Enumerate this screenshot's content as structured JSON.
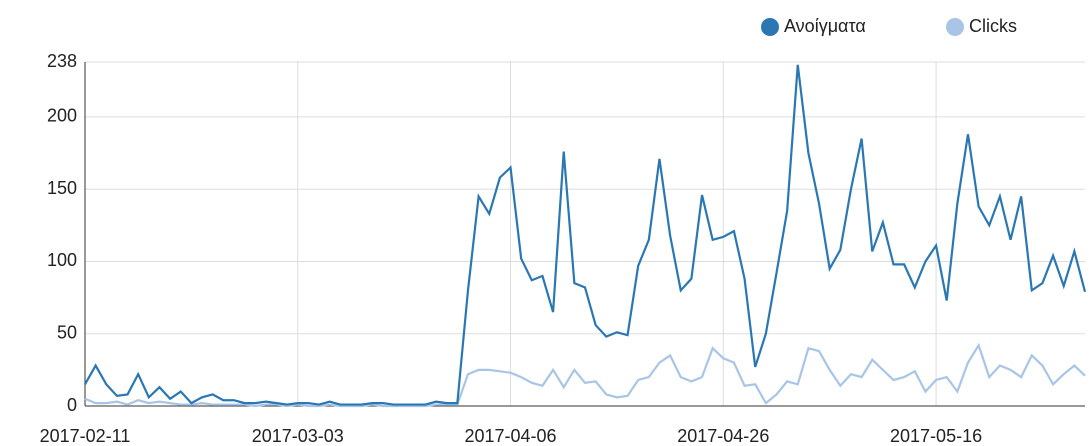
{
  "chart_data": {
    "type": "line",
    "categories": [
      "2017-02-11",
      null,
      null,
      null,
      null,
      null,
      null,
      null,
      null,
      null,
      null,
      null,
      null,
      null,
      null,
      null,
      null,
      null,
      null,
      null,
      "2017-03-03",
      null,
      null,
      null,
      null,
      null,
      null,
      null,
      null,
      null,
      null,
      null,
      null,
      null,
      null,
      null,
      null,
      null,
      null,
      null,
      "2017-04-06",
      null,
      null,
      null,
      null,
      null,
      null,
      null,
      null,
      null,
      null,
      null,
      null,
      null,
      null,
      null,
      null,
      null,
      null,
      null,
      "2017-04-26",
      null,
      null,
      null,
      null,
      null,
      null,
      null,
      null,
      null,
      null,
      null,
      null,
      null,
      null,
      null,
      null,
      null,
      null,
      null,
      "2017-05-16",
      null,
      null,
      null,
      null,
      null,
      null,
      null,
      null,
      null,
      null,
      null,
      null,
      null,
      null
    ],
    "series": [
      {
        "name": "Ανοίγματα",
        "color": "#2a77b4",
        "values": [
          15,
          28,
          15,
          7,
          8,
          22,
          6,
          13,
          5,
          10,
          2,
          6,
          8,
          4,
          4,
          2,
          2,
          3,
          2,
          1,
          2,
          2,
          1,
          3,
          1,
          1,
          1,
          2,
          2,
          1,
          1,
          1,
          1,
          3,
          2,
          2,
          80,
          145,
          133,
          158,
          165,
          102,
          87,
          90,
          65,
          176,
          85,
          82,
          56,
          48,
          51,
          49,
          97,
          115,
          171,
          118,
          80,
          88,
          146,
          115,
          117,
          121,
          88,
          27,
          50,
          92,
          135,
          236,
          175,
          140,
          95,
          108,
          150,
          185,
          107,
          127,
          98,
          98,
          82,
          100,
          111,
          73,
          140,
          188,
          138,
          125,
          145,
          115,
          145,
          80,
          85,
          104,
          83,
          107,
          79
        ]
      },
      {
        "name": "Clicks",
        "color": "#a9c5e6",
        "values": [
          5,
          2,
          2,
          3,
          1,
          4,
          2,
          3,
          2,
          1,
          1,
          2,
          1,
          1,
          1,
          1,
          0,
          1,
          1,
          0,
          1,
          0,
          0,
          1,
          0,
          0,
          0,
          1,
          0,
          0,
          0,
          0,
          0,
          1,
          1,
          1,
          22,
          25,
          25,
          24,
          23,
          20,
          16,
          14,
          25,
          13,
          25,
          16,
          17,
          8,
          6,
          7,
          18,
          20,
          30,
          35,
          20,
          17,
          20,
          40,
          33,
          30,
          14,
          15,
          2,
          8,
          17,
          15,
          40,
          38,
          25,
          14,
          22,
          20,
          32,
          25,
          18,
          20,
          24,
          10,
          18,
          20,
          10,
          30,
          42,
          20,
          28,
          25,
          20,
          35,
          28,
          15,
          22,
          28,
          21
        ]
      }
    ],
    "ylim": [
      0,
      238
    ],
    "yticks": [
      0,
      50,
      100,
      150,
      200,
      238
    ],
    "grid": true,
    "legend": "top-right"
  }
}
